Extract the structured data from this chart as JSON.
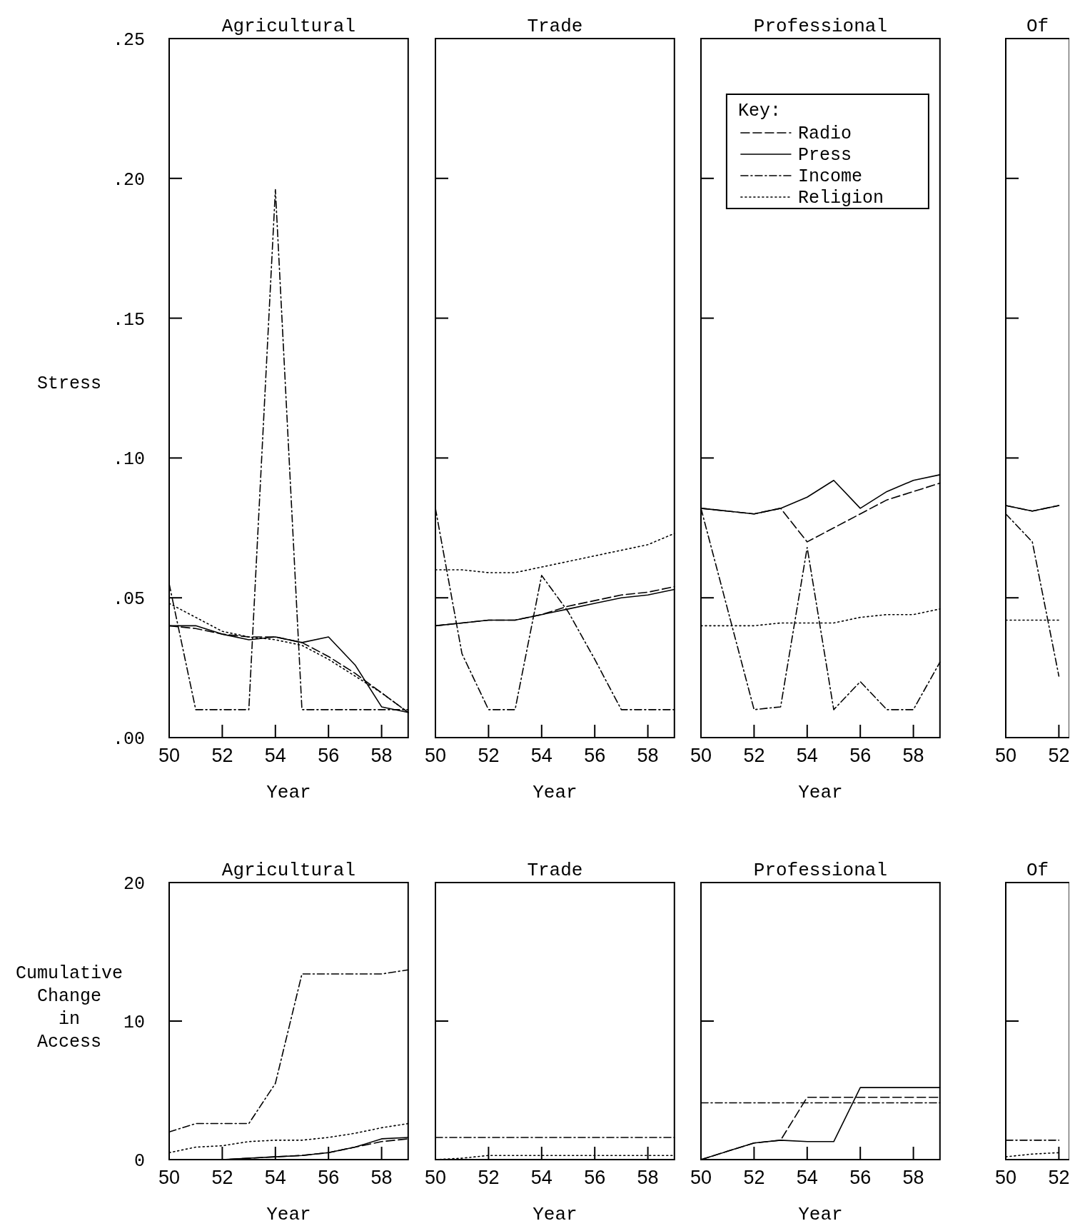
{
  "chart_data": [
    {
      "type": "line",
      "title": "Agricultural",
      "xlabel": "Year",
      "ylabel": "Stress",
      "x": [
        50,
        51,
        52,
        53,
        54,
        55,
        56,
        57,
        58,
        59
      ],
      "xlim": [
        50,
        59
      ],
      "xticks": [
        50,
        52,
        54,
        56,
        58
      ],
      "ylim": [
        0,
        0.25
      ],
      "yticks": [
        {
          "value": 0,
          "label": ".00"
        },
        {
          "value": 0.05,
          "label": ".05"
        },
        {
          "value": 0.1,
          "label": ".10"
        },
        {
          "value": 0.15,
          "label": ".15"
        },
        {
          "value": 0.2,
          "label": ".20"
        },
        {
          "value": 0.25,
          "label": ".25"
        }
      ],
      "grid": false,
      "legend": false,
      "series": [
        {
          "color": "#000000",
          "line_style": "dashed",
          "values": [
            0.04,
            0.039,
            0.037,
            0.036,
            0.036,
            0.034,
            0.029,
            0.023,
            0.016,
            0.009
          ]
        },
        {
          "color": "#000000",
          "line_style": "solid",
          "values": [
            0.04,
            0.04,
            0.037,
            0.035,
            0.036,
            0.034,
            0.036,
            0.026,
            0.011,
            0.009
          ]
        },
        {
          "color": "#000000",
          "line_style": "dashdot",
          "values": [
            0.055,
            0.01,
            0.01,
            0.01,
            0.196,
            0.01,
            0.01,
            0.01,
            0.01,
            0.01
          ]
        },
        {
          "color": "#000000",
          "line_style": "dotted",
          "values": [
            0.048,
            0.043,
            0.038,
            0.036,
            0.035,
            0.033,
            0.028,
            0.022,
            0.016,
            0.009
          ]
        }
      ]
    },
    {
      "type": "line",
      "title": "Trade",
      "xlabel": "Year",
      "x": [
        50,
        51,
        52,
        53,
        54,
        55,
        56,
        57,
        58,
        59
      ],
      "xlim": [
        50,
        59
      ],
      "xticks": [
        50,
        52,
        54,
        56,
        58
      ],
      "ylim": [
        0,
        0.25
      ],
      "yticks": [
        {
          "value": 0,
          "label": null
        },
        {
          "value": 0.05,
          "label": null
        },
        {
          "value": 0.1,
          "label": null
        },
        {
          "value": 0.15,
          "label": null
        },
        {
          "value": 0.2,
          "label": null
        },
        {
          "value": 0.25,
          "label": null
        }
      ],
      "tick_labels": "x",
      "grid": false,
      "legend": false,
      "series": [
        {
          "color": "#000000",
          "line_style": "dashed",
          "values": [
            0.04,
            0.041,
            0.042,
            0.042,
            0.044,
            0.047,
            0.049,
            0.051,
            0.052,
            0.054
          ]
        },
        {
          "color": "#000000",
          "line_style": "solid",
          "values": [
            0.04,
            0.041,
            0.042,
            0.042,
            0.044,
            0.046,
            0.048,
            0.05,
            0.051,
            0.053
          ]
        },
        {
          "color": "#000000",
          "line_style": "dashdot",
          "values": [
            0.082,
            0.03,
            0.01,
            0.01,
            0.058,
            0.045,
            0.028,
            0.01,
            0.01,
            0.01
          ]
        },
        {
          "color": "#000000",
          "line_style": "dotted",
          "values": [
            0.06,
            0.06,
            0.059,
            0.059,
            0.061,
            0.063,
            0.065,
            0.067,
            0.069,
            0.073
          ]
        }
      ]
    },
    {
      "type": "line",
      "title": "Professional",
      "xlabel": "Year",
      "legend_title": "Key:",
      "x": [
        50,
        51,
        52,
        53,
        54,
        55,
        56,
        57,
        58,
        59
      ],
      "xlim": [
        50,
        59
      ],
      "xticks": [
        50,
        52,
        54,
        56,
        58
      ],
      "ylim": [
        0,
        0.25
      ],
      "yticks": [
        {
          "value": 0,
          "label": null
        },
        {
          "value": 0.05,
          "label": null
        },
        {
          "value": 0.1,
          "label": null
        },
        {
          "value": 0.15,
          "label": null
        },
        {
          "value": 0.2,
          "label": null
        },
        {
          "value": 0.25,
          "label": null
        }
      ],
      "tick_labels": "x",
      "grid": false,
      "legend": "top",
      "series": [
        {
          "name": "Radio",
          "color": "#000000",
          "line_style": "dashed",
          "values": [
            0.082,
            0.081,
            0.08,
            0.082,
            0.07,
            0.075,
            0.08,
            0.085,
            0.088,
            0.091
          ]
        },
        {
          "name": "Press",
          "color": "#000000",
          "line_style": "solid",
          "values": [
            0.082,
            0.081,
            0.08,
            0.082,
            0.086,
            0.092,
            0.082,
            0.088,
            0.092,
            0.094
          ]
        },
        {
          "name": "Income",
          "color": "#000000",
          "line_style": "dashdot",
          "values": [
            0.082,
            0.046,
            0.01,
            0.011,
            0.068,
            0.01,
            0.02,
            0.01,
            0.01,
            0.027
          ]
        },
        {
          "name": "Religion",
          "color": "#000000",
          "line_style": "dotted",
          "values": [
            0.04,
            0.04,
            0.04,
            0.041,
            0.041,
            0.041,
            0.043,
            0.044,
            0.044,
            0.046
          ]
        }
      ]
    },
    {
      "type": "line",
      "title": "Of",
      "x": [
        50,
        51,
        52
      ],
      "xlim": [
        50,
        52.4
      ],
      "xticks": [
        50,
        52
      ],
      "ylim": [
        0,
        0.25
      ],
      "yticks": [
        {
          "value": 0,
          "label": null
        },
        {
          "value": 0.05,
          "label": null
        },
        {
          "value": 0.1,
          "label": null
        },
        {
          "value": 0.15,
          "label": null
        },
        {
          "value": 0.2,
          "label": null
        },
        {
          "value": 0.25,
          "label": null
        }
      ],
      "tick_labels": "x",
      "grid": false,
      "legend": false,
      "series": [
        {
          "color": "#000000",
          "line_style": "dashed",
          "values": [
            0.083,
            0.081,
            0.083
          ]
        },
        {
          "color": "#000000",
          "line_style": "solid",
          "values": [
            0.083,
            0.081,
            0.083
          ]
        },
        {
          "color": "#000000",
          "line_style": "dashdot",
          "values": [
            0.08,
            0.07,
            0.022
          ]
        },
        {
          "color": "#000000",
          "line_style": "dotted",
          "values": [
            0.042,
            0.042,
            0.042
          ]
        }
      ]
    },
    {
      "type": "line",
      "title": "Agricultural",
      "xlabel": "Year",
      "ylabel": "Cumulative Change in Access",
      "x": [
        50,
        51,
        52,
        53,
        54,
        55,
        56,
        57,
        58,
        59
      ],
      "xlim": [
        50,
        59
      ],
      "xticks": [
        50,
        52,
        54,
        56,
        58
      ],
      "ylim": [
        0,
        20
      ],
      "yticks": [
        0,
        10,
        20
      ],
      "grid": false,
      "legend": false,
      "series": [
        {
          "color": "#000000",
          "line_style": "dashed",
          "values": [
            0,
            0,
            0,
            0.1,
            0.2,
            0.3,
            0.5,
            0.9,
            1.3,
            1.5
          ]
        },
        {
          "color": "#000000",
          "line_style": "solid",
          "values": [
            0,
            0,
            0,
            0.1,
            0.2,
            0.3,
            0.5,
            0.9,
            1.5,
            1.6
          ]
        },
        {
          "color": "#000000",
          "line_style": "dashdot",
          "values": [
            2,
            2.6,
            2.6,
            2.6,
            5.5,
            13.4,
            13.4,
            13.4,
            13.4,
            13.7
          ]
        },
        {
          "color": "#000000",
          "line_style": "dotted",
          "values": [
            0.5,
            0.9,
            1,
            1.3,
            1.4,
            1.4,
            1.6,
            1.9,
            2.3,
            2.6
          ]
        }
      ]
    },
    {
      "type": "line",
      "title": "Trade",
      "xlabel": "Year",
      "x": [
        50,
        51,
        52,
        53,
        54,
        55,
        56,
        57,
        58,
        59
      ],
      "xlim": [
        50,
        59
      ],
      "xticks": [
        50,
        52,
        54,
        56,
        58
      ],
      "ylim": [
        0,
        20
      ],
      "yticks": [
        {
          "value": 0,
          "label": null
        },
        {
          "value": 10,
          "label": null
        },
        {
          "value": 20,
          "label": null
        }
      ],
      "tick_labels": "x",
      "grid": false,
      "legend": false,
      "series": [
        {
          "color": "#000000",
          "line_style": "dashdot",
          "values": [
            1.6,
            1.6,
            1.6,
            1.6,
            1.6,
            1.6,
            1.6,
            1.6,
            1.6,
            1.6
          ]
        },
        {
          "color": "#000000",
          "line_style": "dotted",
          "values": [
            0,
            0.1,
            0.3,
            0.3,
            0.3,
            0.3,
            0.3,
            0.3,
            0.3,
            0.3
          ]
        }
      ]
    },
    {
      "type": "line",
      "title": "Professional",
      "xlabel": "Year",
      "x": [
        50,
        51,
        52,
        53,
        54,
        55,
        56,
        57,
        58,
        59
      ],
      "xlim": [
        50,
        59
      ],
      "xticks": [
        50,
        52,
        54,
        56,
        58
      ],
      "ylim": [
        0,
        20
      ],
      "yticks": [
        {
          "value": 0,
          "label": null
        },
        {
          "value": 10,
          "label": null
        },
        {
          "value": 20,
          "label": null
        }
      ],
      "tick_labels": "x",
      "grid": false,
      "legend": false,
      "series": [
        {
          "color": "#000000",
          "line_style": "dashed",
          "values": [
            0,
            0.6,
            1.2,
            1.4,
            4.5,
            4.5,
            4.5,
            4.5,
            4.5,
            4.5
          ]
        },
        {
          "color": "#000000",
          "line_style": "solid",
          "values": [
            0,
            0.6,
            1.2,
            1.4,
            1.3,
            1.3,
            5.2,
            5.2,
            5.2,
            5.2
          ]
        },
        {
          "color": "#000000",
          "line_style": "dashdot",
          "values": [
            4.1,
            4.1,
            4.1,
            4.1,
            4.1,
            4.1,
            4.1,
            4.1,
            4.1,
            4.1
          ]
        }
      ]
    },
    {
      "type": "line",
      "title": "Of",
      "x": [
        50,
        51,
        52
      ],
      "xlim": [
        50,
        52.4
      ],
      "xticks": [
        50,
        52
      ],
      "ylim": [
        0,
        20
      ],
      "yticks": [
        {
          "value": 0,
          "label": null
        },
        {
          "value": 10,
          "label": null
        },
        {
          "value": 20,
          "label": null
        }
      ],
      "tick_labels": "x",
      "grid": false,
      "legend": false,
      "series": [
        {
          "color": "#000000",
          "line_style": "dashdot",
          "values": [
            1.4,
            1.4,
            1.4
          ]
        },
        {
          "color": "#000000",
          "line_style": "dotted",
          "values": [
            0.2,
            0.4,
            0.5
          ]
        }
      ]
    }
  ]
}
